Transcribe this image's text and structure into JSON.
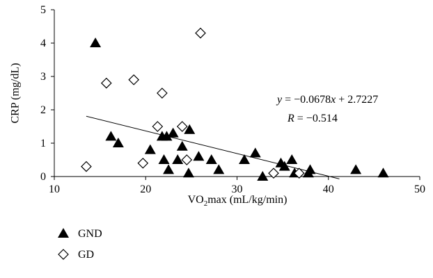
{
  "chart_data": {
    "type": "scatter",
    "title": "",
    "xlabel_main": "VO",
    "xlabel_sub": "2",
    "xlabel_rest": "max (mL/kg/min)",
    "ylabel": "CRP (mg/dL)",
    "xlim": [
      10,
      50
    ],
    "ylim": [
      0,
      5
    ],
    "x_ticks": [
      "10",
      "20",
      "30",
      "40",
      "50"
    ],
    "y_ticks": [
      "0",
      "1",
      "2",
      "3",
      "4",
      "5"
    ],
    "grid": false,
    "legend_position": "bottom-left",
    "series": [
      {
        "name": "GND",
        "marker": "filled-triangle",
        "color": "#000000",
        "points": [
          [
            14.5,
            4.0
          ],
          [
            16.2,
            1.2
          ],
          [
            17.0,
            1.0
          ],
          [
            20.5,
            0.8
          ],
          [
            21.8,
            1.2
          ],
          [
            22.0,
            0.5
          ],
          [
            22.3,
            1.2
          ],
          [
            22.5,
            0.2
          ],
          [
            23.0,
            1.3
          ],
          [
            23.5,
            0.5
          ],
          [
            24.0,
            0.9
          ],
          [
            24.8,
            1.4
          ],
          [
            24.7,
            0.1
          ],
          [
            25.8,
            0.6
          ],
          [
            27.2,
            0.5
          ],
          [
            28.0,
            0.2
          ],
          [
            30.8,
            0.5
          ],
          [
            32.0,
            0.7
          ],
          [
            32.8,
            0.0
          ],
          [
            34.8,
            0.4
          ],
          [
            35.2,
            0.3
          ],
          [
            36.0,
            0.5
          ],
          [
            36.3,
            0.1
          ],
          [
            37.8,
            0.1
          ],
          [
            38.0,
            0.2
          ],
          [
            43.0,
            0.2
          ],
          [
            46.0,
            0.1
          ]
        ]
      },
      {
        "name": "GD",
        "marker": "open-diamond",
        "color": "#000000",
        "points": [
          [
            13.5,
            0.3
          ],
          [
            15.7,
            2.8
          ],
          [
            18.7,
            2.9
          ],
          [
            19.7,
            0.4
          ],
          [
            21.3,
            1.5
          ],
          [
            21.8,
            2.5
          ],
          [
            24.0,
            1.5
          ],
          [
            24.5,
            0.5
          ],
          [
            26.0,
            4.3
          ],
          [
            34.0,
            0.1
          ],
          [
            36.8,
            0.1
          ]
        ]
      }
    ],
    "trendline": {
      "slope": -0.0678,
      "intercept": 2.7227,
      "x_range": [
        13.5,
        41.2
      ],
      "color": "#000000"
    },
    "annotation": {
      "equation_y": "y",
      "equation_eq": " = −0.0678",
      "equation_x": "x",
      "equation_tail": " + 2.7227",
      "r_label": "R",
      "r_value": " = −0.514"
    }
  }
}
